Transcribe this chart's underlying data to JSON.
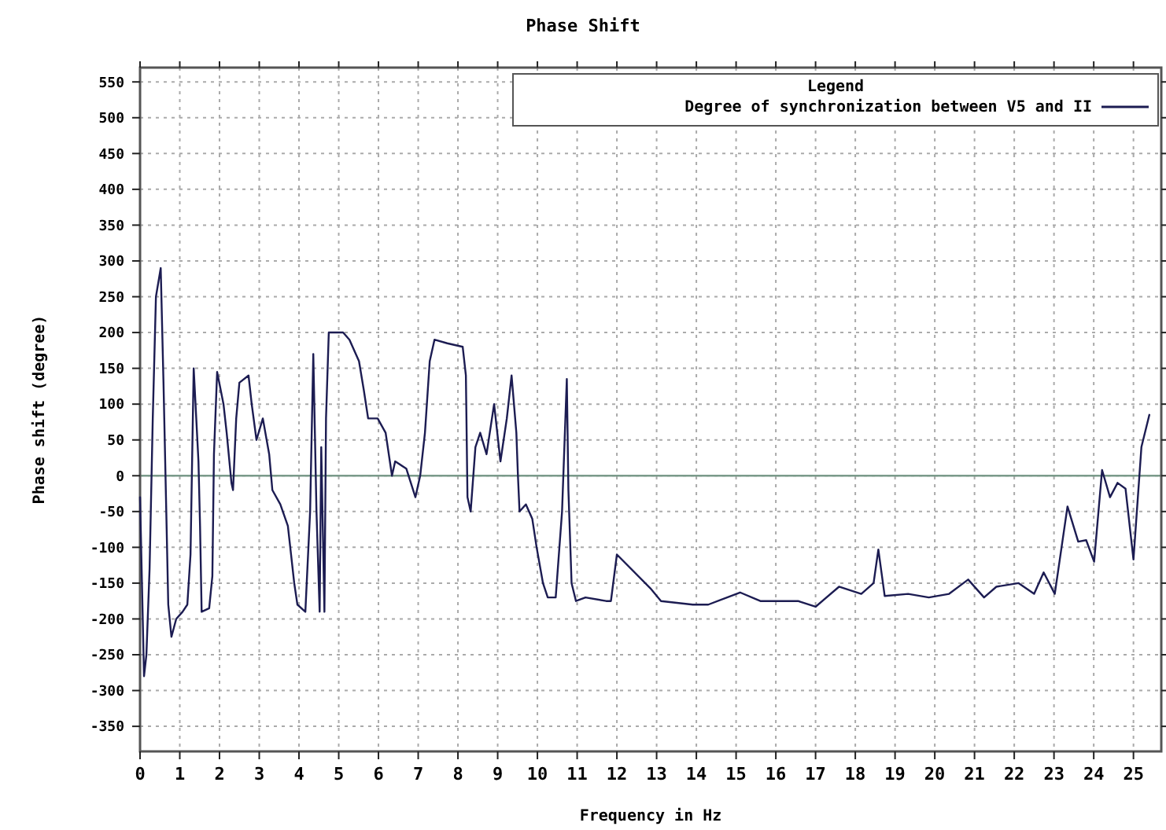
{
  "chart_data": {
    "type": "line",
    "title": "Phase Shift",
    "xlabel": "Frequency in Hz",
    "ylabel": "Phase shift (degree)",
    "legend_title": "Legend",
    "legend": "top right",
    "grid": true,
    "marker": "none",
    "line_style": "solid",
    "xlim": [
      0,
      25.7
    ],
    "xticks": [
      0,
      1,
      2,
      3,
      4,
      5,
      6,
      7,
      8,
      9,
      10,
      11,
      12,
      13,
      14,
      15,
      16,
      17,
      18,
      19,
      20,
      21,
      22,
      23,
      24,
      25
    ],
    "ylim": [
      -385,
      570
    ],
    "yticks": [
      -350,
      -300,
      -250,
      -200,
      -150,
      -100,
      -50,
      0,
      50,
      100,
      150,
      200,
      250,
      300,
      350,
      400,
      450,
      500,
      550
    ],
    "ref_lines": [
      {
        "axis": "y",
        "value": 0,
        "color": "#7a9a8a"
      }
    ],
    "series": [
      {
        "name": "Degree of synchronization between V5 and II",
        "color": "#1c1c52",
        "x": [
          0,
          0.1,
          0.16,
          0.24,
          0.32,
          0.4,
          0.52,
          0.59,
          0.67,
          0.71,
          0.79,
          0.91,
          1.07,
          1.19,
          1.27,
          1.35,
          1.47,
          1.51,
          1.55,
          1.74,
          1.82,
          1.86,
          1.94,
          2.1,
          2.18,
          2.3,
          2.34,
          2.42,
          2.5,
          2.73,
          2.81,
          2.93,
          3.09,
          3.25,
          3.33,
          3.53,
          3.72,
          3.8,
          3.88,
          3.96,
          4.16,
          4.28,
          4.36,
          4.44,
          4.52,
          4.56,
          4.64,
          4.68,
          4.75,
          5.11,
          5.27,
          5.51,
          5.63,
          5.74,
          5.98,
          6.18,
          6.34,
          6.42,
          6.7,
          6.93,
          7.05,
          7.17,
          7.29,
          7.41,
          7.73,
          8.12,
          8.2,
          8.24,
          8.32,
          8.44,
          8.56,
          8.72,
          8.91,
          8.99,
          9.07,
          9.23,
          9.35,
          9.47,
          9.51,
          9.55,
          9.71,
          9.87,
          9.98,
          10.14,
          10.26,
          10.46,
          10.62,
          10.74,
          10.78,
          10.86,
          10.97,
          11.21,
          11.73,
          11.85,
          12,
          12.84,
          13.11,
          13.91,
          14.3,
          15.1,
          15.61,
          16.56,
          17,
          17.59,
          18.15,
          18.46,
          18.58,
          18.74,
          19.33,
          19.85,
          20.36,
          20.84,
          21.24,
          21.55,
          22.11,
          22.5,
          22.74,
          23.02,
          23.34,
          23.61,
          23.81,
          24.01,
          24.21,
          24.41,
          24.6,
          24.8,
          25,
          25.2,
          25.4
        ],
        "values": [
          -30,
          -280,
          -250,
          -130,
          80,
          250,
          290,
          130,
          -75,
          -180,
          -225,
          -200,
          -190,
          -180,
          -110,
          150,
          20,
          -70,
          -190,
          -185,
          -140,
          30,
          145,
          100,
          60,
          -10,
          -20,
          80,
          130,
          140,
          100,
          50,
          80,
          30,
          -20,
          -40,
          -70,
          -110,
          -150,
          -180,
          -190,
          -50,
          170,
          -50,
          -190,
          40,
          -190,
          80,
          200,
          200,
          190,
          160,
          120,
          80,
          80,
          60,
          0,
          20,
          10,
          -30,
          0,
          60,
          160,
          190,
          185,
          180,
          140,
          -30,
          -50,
          40,
          60,
          30,
          100,
          60,
          20,
          80,
          140,
          60,
          0,
          -50,
          -40,
          -60,
          -100,
          -150,
          -170,
          -170,
          -50,
          135,
          -20,
          -150,
          -175,
          -170,
          -175,
          -175,
          -110,
          -157,
          -175,
          -180,
          -180,
          -163,
          -175,
          -175,
          -183,
          -155,
          -165,
          -150,
          -103,
          -168,
          -165,
          -170,
          -165,
          -145,
          -170,
          -155,
          -150,
          -165,
          -135,
          -165,
          -43,
          -92,
          -90,
          -120,
          8,
          -30,
          -10,
          -18,
          -117,
          40,
          85
        ]
      }
    ]
  }
}
